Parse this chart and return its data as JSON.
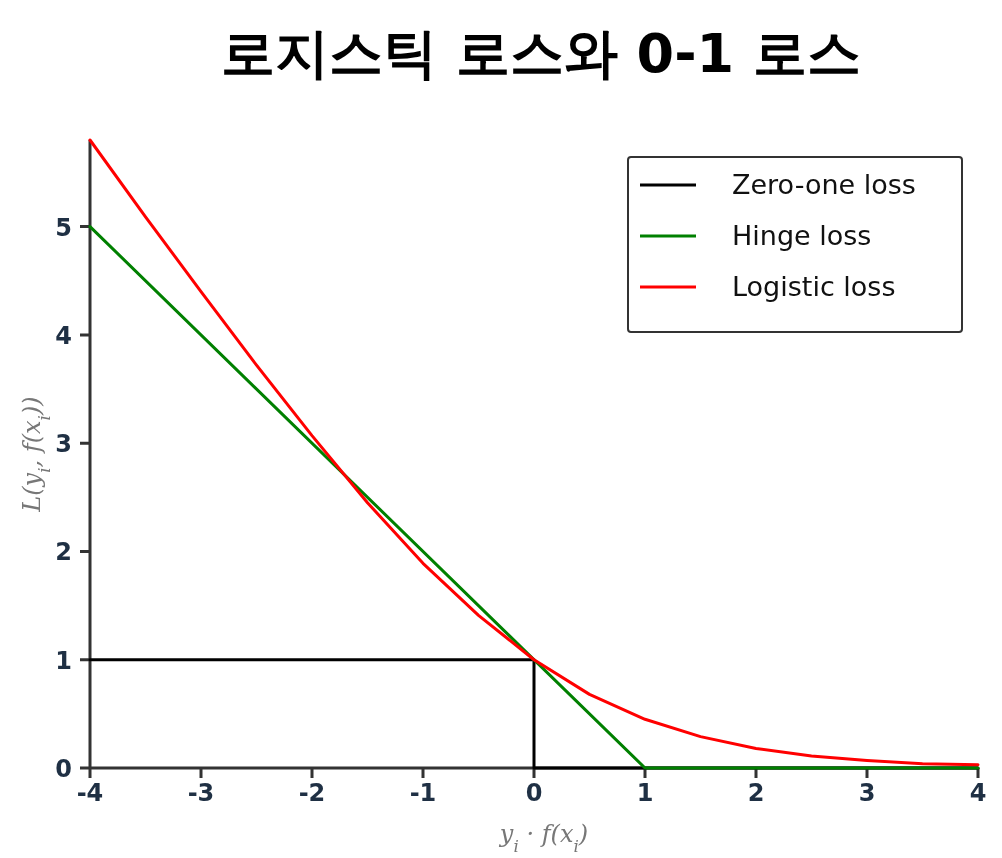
{
  "chart_data": {
    "type": "line",
    "title": "로지스틱 로스와 0-1 로스",
    "xlabel": "y$_{i}$ · f(x$_{i}$)",
    "ylabel": "L(y$_{i}$, f(x$_{i}$))",
    "xlim": [
      -4,
      4
    ],
    "xticks": [
      -4,
      -3,
      -2,
      -1,
      0,
      1,
      2,
      3,
      4
    ],
    "ylim": [
      0,
      5.8
    ],
    "yticks": [
      0,
      1,
      2,
      3,
      4,
      5
    ],
    "grid": false,
    "legend": "top right",
    "marker": "none",
    "line_style": "solid",
    "series": [
      {
        "name": "Zero-one loss",
        "color": "#000000",
        "x": [
          -4,
          0,
          0,
          4
        ],
        "values": [
          1,
          1,
          0,
          0
        ]
      },
      {
        "name": "Hinge loss",
        "color": "#008000",
        "x": [
          -4,
          1,
          4
        ],
        "values": [
          5,
          0,
          0
        ]
      },
      {
        "name": "Logistic loss",
        "color": "#ff0000",
        "x": [
          -4,
          -3.5,
          -3,
          -2.5,
          -2,
          -1.5,
          -1,
          -0.5,
          0,
          0.5,
          1,
          1.5,
          2,
          2.5,
          3,
          3.5,
          4
        ],
        "values": [
          5.8,
          5.09,
          4.4,
          3.72,
          3.07,
          2.45,
          1.89,
          1.41,
          1,
          0.68,
          0.45,
          0.29,
          0.18,
          0.11,
          0.07,
          0.04,
          0.03
        ]
      }
    ]
  }
}
